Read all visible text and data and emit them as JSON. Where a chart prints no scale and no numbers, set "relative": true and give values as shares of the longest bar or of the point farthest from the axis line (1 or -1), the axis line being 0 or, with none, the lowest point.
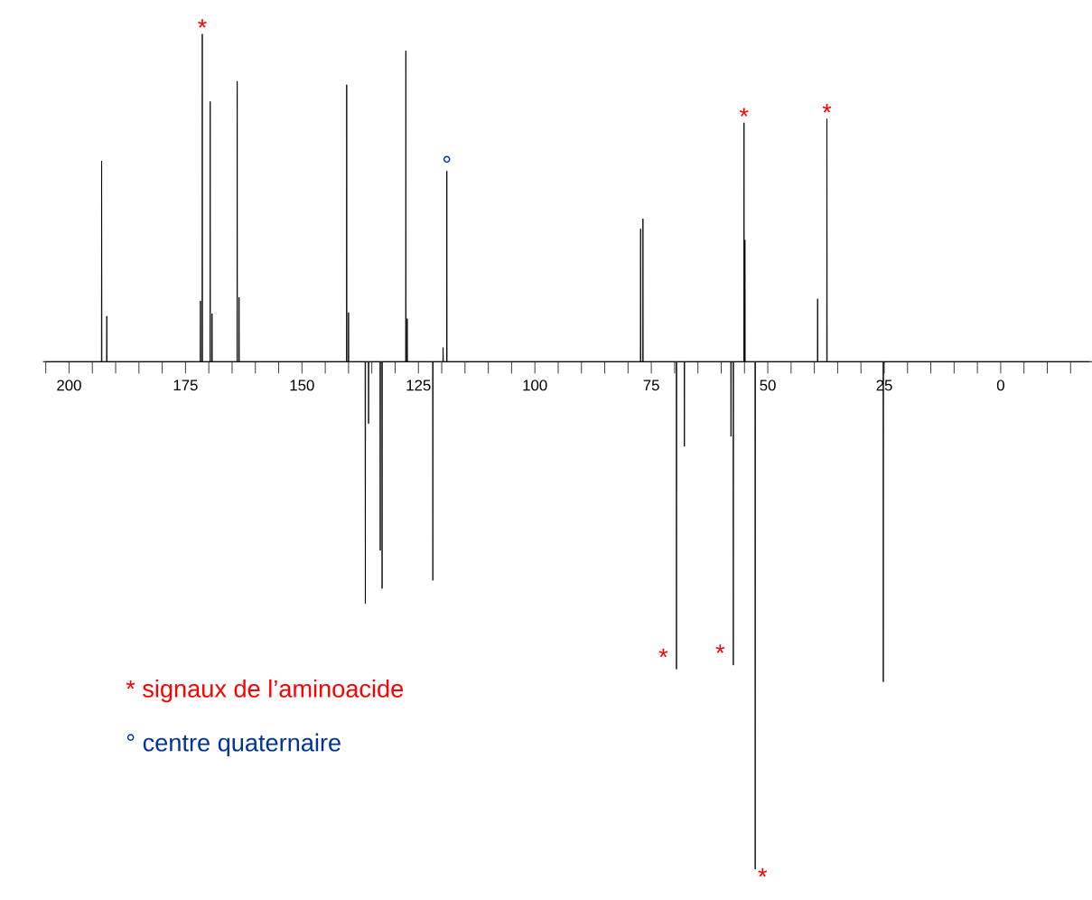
{
  "chart_data": {
    "type": "line",
    "relative": true,
    "xlim": [
      205.6,
      -19.6
    ],
    "xticks": [
      {
        "value": 205,
        "label": null
      },
      200,
      {
        "value": 195,
        "label": null
      },
      {
        "value": 190,
        "label": null
      },
      {
        "value": 185,
        "label": null
      },
      {
        "value": 180,
        "label": null
      },
      175,
      {
        "value": 170,
        "label": null
      },
      {
        "value": 165,
        "label": null
      },
      {
        "value": 160,
        "label": null
      },
      {
        "value": 155,
        "label": null
      },
      150,
      {
        "value": 145,
        "label": null
      },
      {
        "value": 140,
        "label": null
      },
      {
        "value": 135,
        "label": null
      },
      {
        "value": 130,
        "label": null
      },
      125,
      {
        "value": 120,
        "label": null
      },
      {
        "value": 115,
        "label": null
      },
      {
        "value": 110,
        "label": null
      },
      {
        "value": 105,
        "label": null
      },
      100,
      {
        "value": 95,
        "label": null
      },
      {
        "value": 90,
        "label": null
      },
      {
        "value": 85,
        "label": null
      },
      {
        "value": 80,
        "label": null
      },
      75,
      {
        "value": 70,
        "label": null
      },
      {
        "value": 65,
        "label": null
      },
      {
        "value": 60,
        "label": null
      },
      {
        "value": 55,
        "label": null
      },
      50,
      {
        "value": 45,
        "label": null
      },
      {
        "value": 40,
        "label": null
      },
      {
        "value": 35,
        "label": null
      },
      {
        "value": 30,
        "label": null
      },
      25,
      {
        "value": 20,
        "label": null
      },
      {
        "value": 15,
        "label": null
      },
      {
        "value": 10,
        "label": null
      },
      {
        "value": 5,
        "label": null
      },
      0,
      {
        "value": -5,
        "label": null
      },
      {
        "value": -10,
        "label": null
      },
      {
        "value": -15,
        "label": null
      }
    ],
    "series": [
      {
        "color": "#000000",
        "x": [
          205,
          193.05,
          193,
          192.95,
          191.95,
          191.9,
          191.85,
          171.85,
          171.8,
          171.75,
          171.45,
          171.4,
          171.35,
          169.75,
          169.7,
          169.65,
          169.35,
          169.3,
          169.25,
          163.95,
          163.9,
          163.85,
          163.55,
          163.5,
          163.45,
          140.45,
          140.4,
          140.35,
          140.05,
          140,
          139.95,
          136.45,
          136.4,
          136.35,
          135.75,
          135.7,
          135.65,
          133.25,
          133.2,
          133.15,
          132.85,
          132.8,
          132.75,
          127.75,
          127.7,
          127.65,
          127.45,
          127.4,
          127.35,
          121.95,
          121.9,
          121.85,
          119.75,
          119.7,
          119.65,
          118.95,
          118.9,
          118.85,
          77.35,
          77.3,
          77.25,
          76.85,
          76.8,
          76.75,
          69.65,
          69.6,
          69.55,
          67.95,
          67.9,
          67.85,
          57.95,
          57.9,
          57.85,
          57.45,
          57.4,
          57.35,
          55.15,
          55.1,
          55.05,
          54.95,
          54.9,
          54.85,
          52.75,
          52.7,
          52.65,
          39.35,
          39.3,
          39.25,
          37.35,
          37.3,
          37.25,
          25.25,
          25.2,
          25.15,
          -19
        ],
        "values": [
          0,
          0,
          0.396,
          0,
          0,
          0.09,
          0,
          0,
          0.12,
          0,
          0,
          0.646,
          0,
          0,
          0.513,
          0,
          0,
          0.095,
          0,
          0,
          0.553,
          0,
          0,
          0.127,
          0,
          0,
          0.546,
          0,
          0,
          0.097,
          0,
          0,
          -0.477,
          0,
          0,
          -0.122,
          0,
          0,
          -0.372,
          0,
          0,
          -0.447,
          0,
          0,
          0.613,
          0,
          0,
          0.085,
          0,
          0,
          -0.431,
          0,
          0,
          0.028,
          0,
          0,
          0.376,
          0,
          0,
          0.262,
          0,
          0,
          0.282,
          0,
          0,
          -0.606,
          0,
          0,
          -0.167,
          0,
          0,
          -0.147,
          0,
          0,
          -0.598,
          0,
          0,
          0.471,
          0,
          0,
          0.24,
          0,
          0,
          -1,
          0,
          0,
          0.124,
          0,
          0,
          0.479,
          0,
          0,
          -0.631,
          0,
          0
        ]
      }
    ],
    "annotations": [
      {
        "text": "*",
        "x": 171.4,
        "y": 0.646
      },
      {
        "text": "*",
        "x": 55.1,
        "y": 0.471
      },
      {
        "text": "*",
        "x": 37.3,
        "y": 0.479
      },
      {
        "text": "°",
        "x": 118.9,
        "y": 0.376
      },
      {
        "text": "*",
        "x": 69.6,
        "y": -0.606
      },
      {
        "text": "*",
        "x": 57.4,
        "y": -0.598
      },
      {
        "text": "*",
        "x": 52.7,
        "y": -1
      },
      "*  signaux de l’aminoacide",
      "°  centre quaternaire"
    ]
  }
}
